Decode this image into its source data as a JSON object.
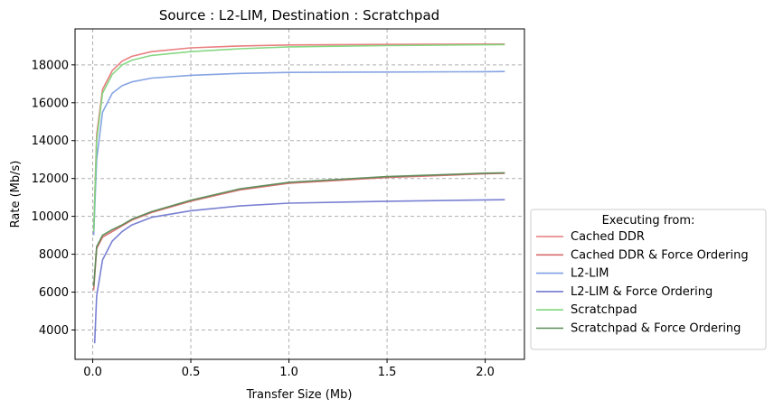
{
  "chart_data": {
    "type": "line",
    "title": "Source : L2-LIM, Destination : Scratchpad",
    "xlabel": "Transfer Size (Mb)",
    "ylabel": "Rate (Mb/s)",
    "xlim": [
      -0.09,
      2.2
    ],
    "ylim": [
      2450,
      19900
    ],
    "xticks": [
      0.0,
      0.5,
      1.0,
      1.5,
      2.0
    ],
    "xtick_labels": [
      "0.0",
      "0.5",
      "1.0",
      "1.5",
      "2.0"
    ],
    "yticks": [
      4000,
      6000,
      8000,
      10000,
      12000,
      14000,
      16000,
      18000
    ],
    "ytick_labels": [
      "4000",
      "6000",
      "8000",
      "10000",
      "12000",
      "14000",
      "16000",
      "18000"
    ],
    "grid": true,
    "legend": {
      "title": "Executing from:",
      "placement": "lower-right outside"
    },
    "series": [
      {
        "name": "Cached DDR",
        "color": "#e8787a",
        "x": [
          0.005,
          0.02,
          0.05,
          0.1,
          0.15,
          0.2,
          0.3,
          0.5,
          0.75,
          1.0,
          1.5,
          2.0,
          2.1
        ],
        "y": [
          9100,
          14300,
          16700,
          17700,
          18200,
          18450,
          18700,
          18900,
          19000,
          19050,
          19080,
          19100,
          19100
        ]
      },
      {
        "name": "Cached DDR & Force Ordering",
        "color": "#d96a6e",
        "x": [
          0.005,
          0.02,
          0.05,
          0.1,
          0.15,
          0.2,
          0.3,
          0.5,
          0.75,
          1.0,
          1.5,
          2.0,
          2.1
        ],
        "y": [
          6100,
          8300,
          8900,
          9200,
          9500,
          9800,
          10200,
          10800,
          11400,
          11750,
          12050,
          12250,
          12270
        ]
      },
      {
        "name": "L2-LIM",
        "color": "#7f9fe2",
        "x": [
          0.005,
          0.02,
          0.05,
          0.1,
          0.15,
          0.2,
          0.3,
          0.5,
          0.75,
          1.0,
          1.5,
          2.0,
          2.1
        ],
        "y": [
          9000,
          13000,
          15500,
          16500,
          16900,
          17100,
          17300,
          17450,
          17550,
          17600,
          17620,
          17640,
          17650
        ]
      },
      {
        "name": "L2-LIM & Force Ordering",
        "color": "#7279d0",
        "x": [
          0.01,
          0.02,
          0.05,
          0.1,
          0.15,
          0.2,
          0.3,
          0.5,
          0.75,
          1.0,
          1.5,
          2.0,
          2.1
        ],
        "y": [
          3300,
          5800,
          7700,
          8700,
          9200,
          9550,
          9950,
          10300,
          10550,
          10700,
          10800,
          10870,
          10880
        ]
      },
      {
        "name": "Scratchpad",
        "color": "#7fd67d",
        "x": [
          0.005,
          0.02,
          0.05,
          0.1,
          0.15,
          0.2,
          0.3,
          0.5,
          0.75,
          1.0,
          1.5,
          2.0,
          2.1
        ],
        "y": [
          9200,
          14000,
          16500,
          17500,
          18000,
          18250,
          18500,
          18700,
          18850,
          18950,
          19020,
          19060,
          19070
        ]
      },
      {
        "name": "Scratchpad & Force Ordering",
        "color": "#5a8a55",
        "x": [
          0.005,
          0.02,
          0.05,
          0.1,
          0.15,
          0.2,
          0.3,
          0.5,
          0.75,
          1.0,
          1.5,
          2.0,
          2.1
        ],
        "y": [
          6300,
          8400,
          9000,
          9300,
          9550,
          9850,
          10250,
          10850,
          11450,
          11800,
          12100,
          12280,
          12300
        ]
      }
    ]
  }
}
